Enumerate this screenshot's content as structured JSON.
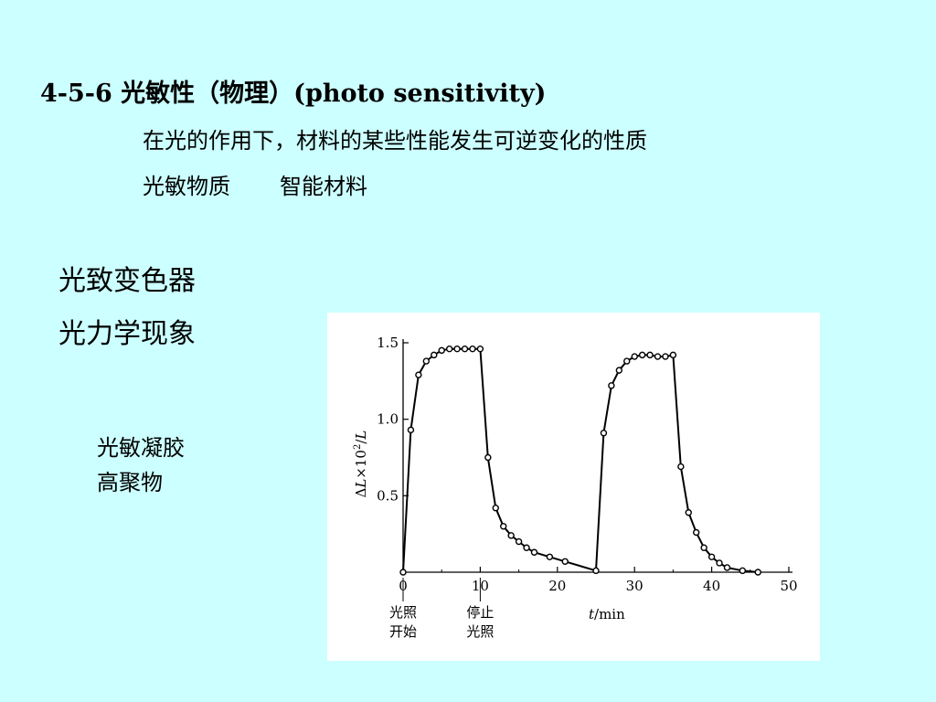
{
  "slide": {
    "title": "4-5-6 光敏性（物理）(photo sensitivity)",
    "definition": "在光的作用下，材料的某些性能发生可逆变化的性质",
    "items_line": [
      "光敏物质",
      "智能材料"
    ],
    "topics": [
      "光致变色器",
      "光力学现象"
    ],
    "material_line1": "光敏凝胶",
    "material_line2": "高聚物"
  },
  "chart_data": {
    "type": "line",
    "ylabel_parts": [
      "Δ",
      "L",
      "×10",
      "2",
      "/",
      "L"
    ],
    "xlabel_parts": [
      "t",
      "/min"
    ],
    "xlim": [
      0,
      50
    ],
    "ylim": [
      0,
      1.5
    ],
    "x_ticks": [
      0,
      10,
      20,
      30,
      40,
      50
    ],
    "x_tick_labels": [
      "0",
      "10",
      "20",
      "30",
      "40",
      "50"
    ],
    "y_ticks": [
      0.5,
      1.0,
      1.5
    ],
    "y_tick_labels": [
      "0.5",
      "1.0",
      "1.5"
    ],
    "grid": false,
    "annotations": [
      {
        "x": 0,
        "lines": [
          "光照",
          "开始"
        ]
      },
      {
        "x": 10,
        "lines": [
          "停止",
          "光照"
        ]
      }
    ],
    "series": [
      {
        "x": [
          0,
          1,
          2,
          3,
          4,
          5,
          6,
          7,
          8,
          9,
          10,
          11,
          12,
          13,
          14,
          15,
          16,
          17,
          19,
          21,
          25,
          26,
          27,
          28,
          29,
          30,
          31,
          32,
          33,
          34,
          35,
          36,
          37,
          38,
          39,
          40,
          41,
          42,
          44,
          46
        ],
        "y": [
          0,
          0.93,
          1.29,
          1.38,
          1.42,
          1.45,
          1.46,
          1.46,
          1.46,
          1.46,
          1.46,
          0.75,
          0.42,
          0.3,
          0.24,
          0.2,
          0.16,
          0.13,
          0.1,
          0.07,
          0.01,
          0.91,
          1.22,
          1.32,
          1.38,
          1.41,
          1.42,
          1.42,
          1.41,
          1.41,
          1.42,
          0.69,
          0.39,
          0.26,
          0.16,
          0.1,
          0.06,
          0.03,
          0.01,
          0.0
        ]
      }
    ]
  }
}
